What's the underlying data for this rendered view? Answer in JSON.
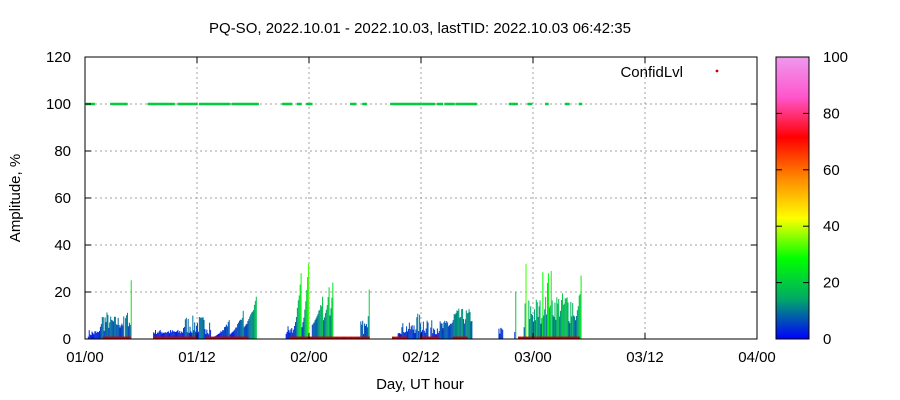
{
  "chart_data": {
    "type": "bar",
    "title": "PQ-SO, 2022.10.01 - 2022.10.03, lastTID: 2022.10.03 06:42:35",
    "xlabel": "Day, UT hour",
    "ylabel": "Amplitude, %",
    "xlim": [
      0,
      72
    ],
    "ylim": [
      0,
      120
    ],
    "x_unit": "hours since 2022.10.01 00:00 UT",
    "x_ticks": [
      {
        "value": 0,
        "label": "01/00"
      },
      {
        "value": 12,
        "label": "01/12"
      },
      {
        "value": 24,
        "label": "02/00"
      },
      {
        "value": 36,
        "label": "02/12"
      },
      {
        "value": 48,
        "label": "03/00"
      },
      {
        "value": 60,
        "label": "03/12"
      },
      {
        "value": 72,
        "label": "04/00"
      }
    ],
    "y_ticks": [
      0,
      20,
      40,
      60,
      80,
      100,
      120
    ],
    "grid": true,
    "legend": {
      "label": "ConfidLvl",
      "position": "top-right",
      "color": "#cc0000"
    },
    "colorbar": {
      "range": [
        0,
        100
      ],
      "ticks": [
        0,
        20,
        40,
        60,
        80,
        100
      ],
      "stops": [
        "#0000ff",
        "#00aa66",
        "#00ff00",
        "#ffff00",
        "#ff8800",
        "#ff0000",
        "#ff55cc",
        "#ee99ee"
      ]
    },
    "bar_segments": [
      {
        "start": 0.3,
        "end": 1.6,
        "min": 1,
        "max": 4,
        "shape": "noise"
      },
      {
        "start": 1.6,
        "end": 2.5,
        "min": 3,
        "max": 12,
        "shape": "noise"
      },
      {
        "start": 2.5,
        "end": 4.2,
        "min": 4,
        "max": 10,
        "shape": "noise"
      },
      {
        "start": 4.3,
        "end": 4.8,
        "min": 5,
        "max": 12,
        "shape": "noise"
      },
      {
        "start": 4.8,
        "end": 5.0,
        "min": 6,
        "max": 25,
        "shape": "rise"
      },
      {
        "start": 7.3,
        "end": 10.5,
        "min": 2,
        "max": 4,
        "shape": "noise"
      },
      {
        "start": 10.5,
        "end": 13.5,
        "min": 2,
        "max": 10,
        "shape": "noise"
      },
      {
        "start": 13.8,
        "end": 15.5,
        "min": 1,
        "max": 8,
        "shape": "rise"
      },
      {
        "start": 15.5,
        "end": 17.0,
        "min": 2,
        "max": 12,
        "shape": "rise"
      },
      {
        "start": 17.0,
        "end": 18.4,
        "min": 5,
        "max": 18,
        "shape": "rise"
      },
      {
        "start": 21.5,
        "end": 22.3,
        "min": 1,
        "max": 6,
        "shape": "noise"
      },
      {
        "start": 22.3,
        "end": 23.2,
        "min": 4,
        "max": 28,
        "shape": "rise"
      },
      {
        "start": 23.2,
        "end": 24.0,
        "min": 5,
        "max": 32,
        "shape": "rise"
      },
      {
        "start": 24.3,
        "end": 25.5,
        "min": 6,
        "max": 18,
        "shape": "rise"
      },
      {
        "start": 25.5,
        "end": 26.2,
        "min": 8,
        "max": 22,
        "shape": "rise"
      },
      {
        "start": 26.2,
        "end": 26.6,
        "min": 10,
        "max": 24,
        "shape": "rise"
      },
      {
        "start": 29.5,
        "end": 30.2,
        "min": 2,
        "max": 8,
        "shape": "noise"
      },
      {
        "start": 30.2,
        "end": 30.5,
        "min": 5,
        "max": 21,
        "shape": "rise"
      },
      {
        "start": 33.5,
        "end": 35.2,
        "min": 2,
        "max": 7,
        "shape": "noise"
      },
      {
        "start": 35.2,
        "end": 36.8,
        "min": 2,
        "max": 11,
        "shape": "noise"
      },
      {
        "start": 37.0,
        "end": 38.7,
        "min": 2,
        "max": 8,
        "shape": "noise"
      },
      {
        "start": 38.7,
        "end": 39.5,
        "min": 3,
        "max": 10,
        "shape": "noise"
      },
      {
        "start": 39.5,
        "end": 41.5,
        "min": 6,
        "max": 13,
        "shape": "noise"
      },
      {
        "start": 44.3,
        "end": 44.8,
        "min": 2,
        "max": 5,
        "shape": "noise"
      },
      {
        "start": 46.0,
        "end": 46.2,
        "min": 3,
        "max": 20,
        "shape": "rise"
      },
      {
        "start": 47.0,
        "end": 47.3,
        "min": 5,
        "max": 32,
        "shape": "rise"
      },
      {
        "start": 47.5,
        "end": 49.0,
        "min": 5,
        "max": 18,
        "shape": "noise"
      },
      {
        "start": 49.0,
        "end": 50.0,
        "min": 10,
        "max": 30,
        "shape": "noise"
      },
      {
        "start": 50.0,
        "end": 51.5,
        "min": 8,
        "max": 20,
        "shape": "noise"
      },
      {
        "start": 51.5,
        "end": 52.5,
        "min": 6,
        "max": 22,
        "shape": "noise"
      },
      {
        "start": 52.5,
        "end": 53.2,
        "min": 8,
        "max": 27,
        "shape": "rise"
      }
    ],
    "confid_100_runs": [
      [
        0.2,
        1.0
      ],
      [
        2.8,
        4.5
      ],
      [
        6.8,
        9.5
      ],
      [
        10.0,
        12.0
      ],
      [
        12.3,
        15.5
      ],
      [
        15.8,
        18.5
      ],
      [
        21.2,
        22.2
      ],
      [
        22.8,
        23.2
      ],
      [
        23.8,
        24.3
      ],
      [
        28.5,
        29.0
      ],
      [
        29.8,
        30.2
      ],
      [
        32.8,
        36.0
      ],
      [
        36.2,
        37.5
      ],
      [
        37.8,
        38.3
      ],
      [
        38.6,
        39.5
      ],
      [
        39.8,
        42.0
      ],
      [
        45.5,
        46.3
      ],
      [
        47.5,
        47.8
      ],
      [
        49.4,
        49.6
      ],
      [
        51.5,
        51.8
      ],
      [
        53.0,
        53.2
      ]
    ],
    "red_low_runs": [
      [
        2.0,
        5.0
      ],
      [
        7.5,
        12.0
      ],
      [
        13.0,
        17.5
      ],
      [
        22.0,
        30.5
      ],
      [
        33.0,
        34.5
      ],
      [
        36.0,
        38.0
      ],
      [
        39.5,
        41.0
      ],
      [
        46.5,
        53.0
      ]
    ]
  }
}
